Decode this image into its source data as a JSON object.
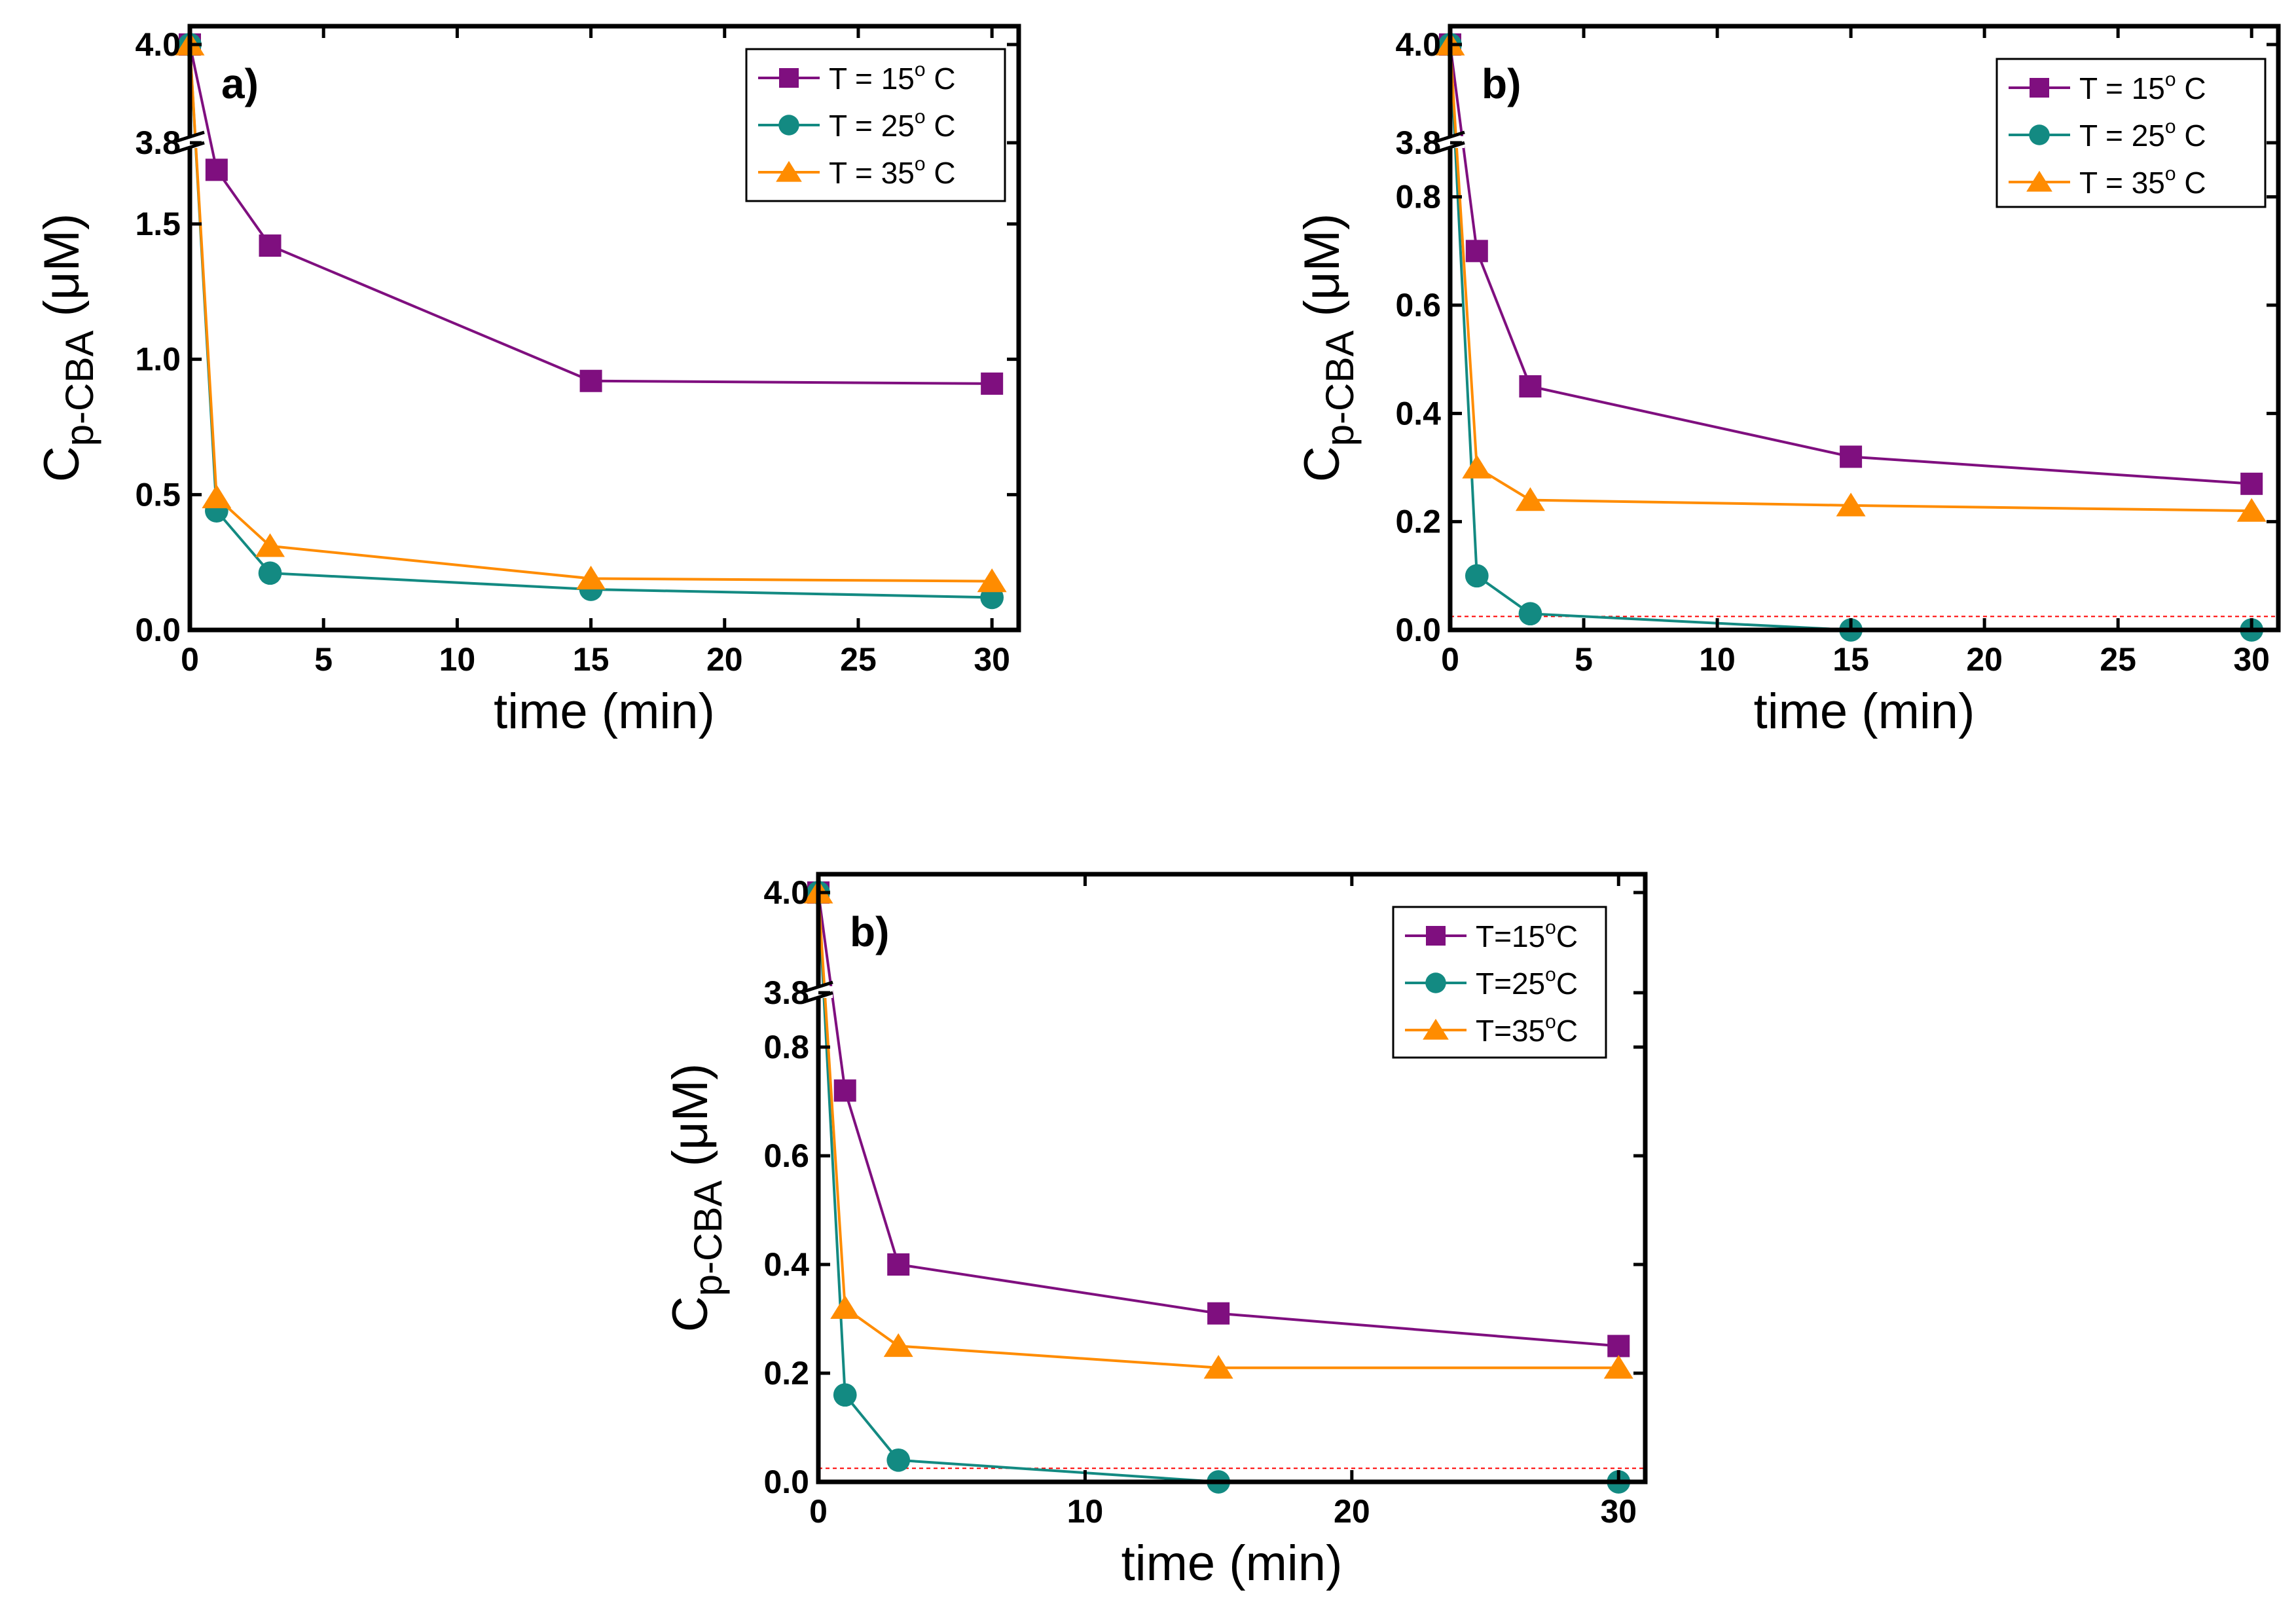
{
  "colors": {
    "series_15": "#7F0F7F",
    "series_25": "#138A82",
    "series_35": "#FF8C00",
    "ref_line": "#FF0000",
    "axis": "#000000"
  },
  "chart_data": [
    {
      "type": "line",
      "panel_label": "a)",
      "xlabel": "time (min)",
      "ylabel_main": "C",
      "ylabel_sub": "p-CBA",
      "ylabel_unit": " (μM)",
      "xlim": [
        0,
        31
      ],
      "x_ticks": [
        0,
        5,
        10,
        15,
        20,
        25,
        30
      ],
      "x_tick_labels": [
        "0",
        "5",
        "10",
        "15",
        "20",
        "25",
        "30"
      ],
      "y_lower_range": [
        0,
        1.8
      ],
      "y_upper_range": [
        3.8,
        4.05
      ],
      "y_ticks": [
        0.0,
        0.5,
        1.0,
        1.5,
        3.8,
        4.0
      ],
      "y_tick_labels": [
        "0.0",
        "0.5",
        "1.0",
        "1.5",
        "3.8",
        "4.0"
      ],
      "axis_break": true,
      "detection_limit": null,
      "legend_position": "top-right",
      "series": [
        {
          "name": "T = 15° C",
          "legend": {
            "prefix": "T = 15",
            "sup": "o",
            "suffix": " C"
          },
          "marker": "square",
          "color_key": "series_15",
          "x": [
            0,
            1,
            3,
            15,
            30
          ],
          "y": [
            4.0,
            1.7,
            1.42,
            0.92,
            0.91
          ]
        },
        {
          "name": "T = 25° C",
          "legend": {
            "prefix": "T = 25",
            "sup": "o",
            "suffix": " C"
          },
          "marker": "circle",
          "color_key": "series_25",
          "x": [
            0,
            1,
            3,
            15,
            30
          ],
          "y": [
            4.0,
            0.44,
            0.21,
            0.15,
            0.12
          ]
        },
        {
          "name": "T = 35° C",
          "legend": {
            "prefix": "T = 35",
            "sup": "o",
            "suffix": " C"
          },
          "marker": "triangle",
          "color_key": "series_35",
          "x": [
            0,
            1,
            3,
            15,
            30
          ],
          "y": [
            4.0,
            0.49,
            0.31,
            0.19,
            0.18
          ]
        }
      ]
    },
    {
      "type": "line",
      "panel_label": "b)",
      "xlabel": "time (min)",
      "ylabel_main": "C",
      "ylabel_sub": "p-CBA",
      "ylabel_unit": " (μM)",
      "xlim": [
        0,
        31
      ],
      "x_ticks": [
        0,
        5,
        10,
        15,
        20,
        25,
        30
      ],
      "x_tick_labels": [
        "0",
        "5",
        "10",
        "15",
        "20",
        "25",
        "30"
      ],
      "y_lower_range": [
        0,
        0.9
      ],
      "y_upper_range": [
        3.8,
        4.05
      ],
      "y_ticks": [
        0.0,
        0.2,
        0.4,
        0.6,
        0.8,
        3.8,
        4.0
      ],
      "y_tick_labels": [
        "0.0",
        "0.2",
        "0.4",
        "0.6",
        "0.8",
        "3.8",
        "4.0"
      ],
      "axis_break": true,
      "detection_limit": 0.025,
      "legend_position": "top-right",
      "series": [
        {
          "name": "T = 15° C",
          "legend": {
            "prefix": "T = 15",
            "sup": "o",
            "suffix": " C"
          },
          "marker": "square",
          "color_key": "series_15",
          "x": [
            0,
            1,
            3,
            15,
            30
          ],
          "y": [
            4.0,
            0.7,
            0.45,
            0.32,
            0.27
          ]
        },
        {
          "name": "T = 25° C",
          "legend": {
            "prefix": "T = 25",
            "sup": "o",
            "suffix": " C"
          },
          "marker": "circle",
          "color_key": "series_25",
          "x": [
            0,
            1,
            3,
            15,
            30
          ],
          "y": [
            4.0,
            0.1,
            0.03,
            0.0,
            0.0
          ]
        },
        {
          "name": "T = 35° C",
          "legend": {
            "prefix": "T = 35",
            "sup": "o",
            "suffix": " C"
          },
          "marker": "triangle",
          "color_key": "series_35",
          "x": [
            0,
            1,
            3,
            15,
            30
          ],
          "y": [
            4.0,
            0.3,
            0.24,
            0.23,
            0.22
          ]
        }
      ]
    },
    {
      "type": "line",
      "panel_label": "b)",
      "xlabel": "time (min)",
      "ylabel_main": "C",
      "ylabel_sub": "p-CBA",
      "ylabel_unit": " (μM)",
      "xlim": [
        0,
        31
      ],
      "x_ticks": [
        0,
        10,
        20,
        30
      ],
      "x_tick_labels": [
        "0",
        "10",
        "20",
        "30"
      ],
      "y_lower_range": [
        0,
        0.9
      ],
      "y_upper_range": [
        3.8,
        4.05
      ],
      "y_ticks": [
        0.0,
        0.2,
        0.4,
        0.6,
        0.8,
        3.8,
        4.0
      ],
      "y_tick_labels": [
        "0.0",
        "0.2",
        "0.4",
        "0.6",
        "0.8",
        "3.8",
        "4.0"
      ],
      "axis_break": true,
      "detection_limit": 0.025,
      "legend_position": "top-right",
      "series": [
        {
          "name": "T=15°C",
          "legend": {
            "prefix": "T=15",
            "sup": "o",
            "suffix": "C"
          },
          "marker": "square",
          "color_key": "series_15",
          "x": [
            0,
            1,
            3,
            15,
            30
          ],
          "y": [
            4.0,
            0.72,
            0.4,
            0.31,
            0.25
          ]
        },
        {
          "name": "T=25°C",
          "legend": {
            "prefix": "T=25",
            "sup": "o",
            "suffix": "C"
          },
          "marker": "circle",
          "color_key": "series_25",
          "x": [
            0,
            1,
            3,
            15,
            30
          ],
          "y": [
            4.0,
            0.16,
            0.04,
            0.0,
            0.0
          ]
        },
        {
          "name": "T=35°C",
          "legend": {
            "prefix": "T=35",
            "sup": "o",
            "suffix": "C"
          },
          "marker": "triangle",
          "color_key": "series_35",
          "x": [
            0,
            1,
            3,
            15,
            30
          ],
          "y": [
            4.0,
            0.32,
            0.25,
            0.21,
            0.21
          ]
        }
      ]
    }
  ]
}
